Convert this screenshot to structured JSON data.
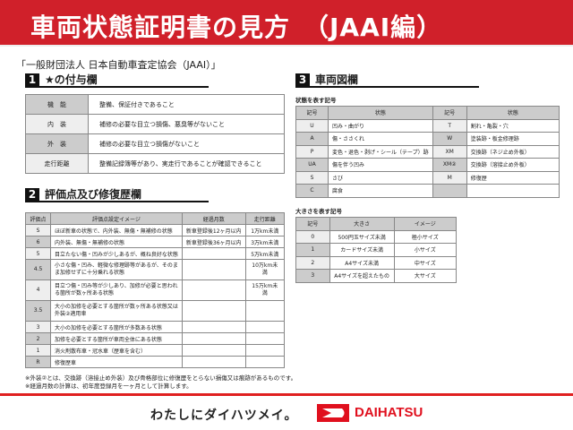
{
  "title": "車両状態証明書の見方　（JAAI編）",
  "organization": "「一般財団法人 日本自動車査定協会（JAAI）」",
  "section1": {
    "num": "1",
    "title": "★の付与欄",
    "rows": [
      {
        "k": "機　能",
        "v": "整備、保証付きであること"
      },
      {
        "k": "内　装",
        "v": "補修の必要な目立つ損傷、悪臭等がないこと"
      },
      {
        "k": "外　装",
        "v": "補修の必要な目立つ損傷がないこと"
      },
      {
        "k": "走行距離",
        "v": "整備記録簿等があり、実走行であることが確認できること"
      }
    ]
  },
  "section2": {
    "num": "2",
    "title": "評価点及び修復歴欄",
    "headers": [
      "評価点",
      "評価点設定イメージ",
      "経過月数",
      "走行距離"
    ],
    "rows": [
      [
        "S",
        "ほぼ新車の状態で、内外装、無傷・無補修の状態",
        "新車登録後12ヶ月以内",
        "1万km未満"
      ],
      [
        "6",
        "内外装、無傷・無補修の状態",
        "新車登録後36ヶ月以内",
        "3万km未満"
      ],
      [
        "5",
        "目立たない傷・凹みが少しあるが、概ね良好な状態",
        "",
        "5万km未満"
      ],
      [
        "4.5",
        "小さな傷・凹み、軽微な修理跡等があるが、そのまま加修せずに十分乗れる状態",
        "",
        "10万km未満"
      ],
      [
        "4",
        "目立つ傷・凹み等が少しあり、加修が必要と思われる箇所が数ヶ所ある状態",
        "",
        "15万km未満"
      ],
      [
        "3.5",
        "大小の加修を必要とする箇所が数ヶ所ある状態又は外装②適用車",
        "",
        ""
      ],
      [
        "3",
        "大小の加修を必要とする箇所が多数ある状態",
        "",
        ""
      ],
      [
        "2",
        "加修を必要とする箇所が車両全体にある状態",
        "",
        ""
      ],
      [
        "1",
        "消火剤散布車・冠水車（歴車を含む）",
        "",
        ""
      ],
      [
        "R",
        "修復歴車",
        "",
        ""
      ]
    ]
  },
  "notes": [
    "※外装②とは、交換跡（溶接止め外装）及び骨格部位に修復歴をとらない損傷又は痕跡があるものです。",
    "※経過月数の計算は、初年度登録月を一ヶ月として計算します。"
  ],
  "section3": {
    "num": "3",
    "title": "車両図欄",
    "state_label": "状態を表す記号",
    "state_headers": [
      "記号",
      "状態",
      "記号",
      "状態"
    ],
    "state_rows": [
      [
        "U",
        "凹み・曲がり",
        "T",
        "割れ・亀裂・穴"
      ],
      [
        "A",
        "傷・ささくれ",
        "W",
        "塗装跡・板金修理跡"
      ],
      [
        "P",
        "変色・退色・剥げ・シール（テープ）跡",
        "XM",
        "交換跡（ネジ止め外板）"
      ],
      [
        "UA",
        "傷を伴う凹み",
        "XM②",
        "交換跡（溶接止め外板）"
      ],
      [
        "S",
        "さび",
        "M",
        "修復歴"
      ],
      [
        "C",
        "腐食",
        "",
        ""
      ]
    ],
    "size_label": "大きさを表す記号",
    "size_headers": [
      "記号",
      "大きさ",
      "イメージ"
    ],
    "size_rows": [
      [
        "0",
        "500円玉サイズ未満",
        "極小サイズ"
      ],
      [
        "1",
        "カードサイズ未満",
        "小サイズ"
      ],
      [
        "2",
        "A4サイズ未満",
        "中サイズ"
      ],
      [
        "3",
        "A4サイズを超えたもの",
        "大サイズ"
      ]
    ]
  },
  "footer": {
    "slogan": "わたしにダイハツメイ。",
    "brand": "DAIHATSU",
    "accent": "#e0101e"
  }
}
